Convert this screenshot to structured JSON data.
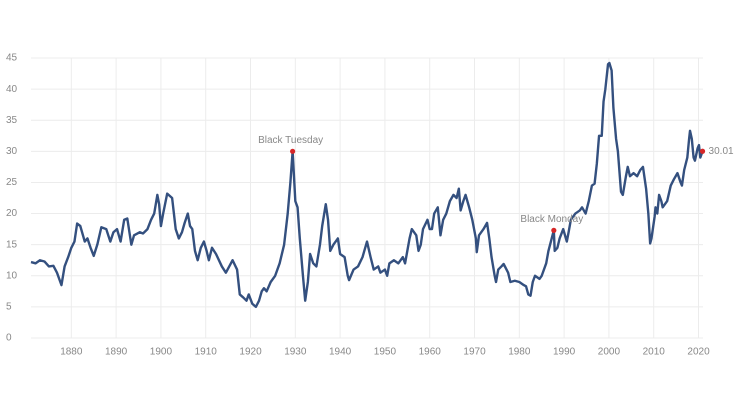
{
  "chart_data": {
    "type": "line",
    "color": "#34507f",
    "marker_color": "#d62728",
    "grid": true,
    "xlim": [
      1871,
      2021
    ],
    "ylim": [
      0,
      45
    ],
    "xticks": [
      1880,
      1890,
      1900,
      1910,
      1920,
      1930,
      1940,
      1950,
      1960,
      1970,
      1980,
      1990,
      2000,
      2010,
      2020
    ],
    "yticks": [
      0,
      5,
      10,
      15,
      20,
      25,
      30,
      35,
      40,
      45
    ],
    "x": [
      1871,
      1872,
      1873,
      1874,
      1875,
      1876,
      1876.8,
      1877.8,
      1878.5,
      1879.3,
      1880,
      1880.7,
      1881.3,
      1882,
      1883,
      1883.6,
      1884.3,
      1885,
      1885.8,
      1886.7,
      1887.8,
      1888.7,
      1889.4,
      1890.2,
      1891,
      1891.8,
      1892.5,
      1893.4,
      1894,
      1895.3,
      1896,
      1897,
      1897.8,
      1898.5,
      1899.2,
      1899.6,
      1900,
      1900.5,
      1901.4,
      1902.5,
      1903.3,
      1904,
      1904.7,
      1905.3,
      1906,
      1906.5,
      1907,
      1907.6,
      1908.2,
      1908.9,
      1909.6,
      1910.2,
      1910.7,
      1911.4,
      1912.3,
      1913.6,
      1914.5,
      1916,
      1917,
      1917.6,
      1918.4,
      1919.1,
      1919.6,
      1920.4,
      1921.2,
      1921.9,
      1922.5,
      1923,
      1923.6,
      1924.5,
      1925.5,
      1926.5,
      1927.5,
      1928.3,
      1928.9,
      1929.4,
      1930,
      1930.5,
      1931,
      1931.7,
      1932.2,
      1932.8,
      1933.3,
      1934,
      1934.7,
      1935.5,
      1936,
      1936.8,
      1937.3,
      1937.8,
      1938.5,
      1939.5,
      1940,
      1941,
      1941.7,
      1942,
      1943,
      1944,
      1945,
      1946,
      1946.8,
      1947.5,
      1948.5,
      1949,
      1950,
      1950.5,
      1951,
      1952,
      1953,
      1953.5,
      1954,
      1954.5,
      1955,
      1955.5,
      1956,
      1957,
      1957.5,
      1958,
      1958.5,
      1959.5,
      1960,
      1960.5,
      1961,
      1961.8,
      1962.4,
      1963,
      1963.7,
      1964.5,
      1965.3,
      1966,
      1966.5,
      1966.9,
      1967.5,
      1968,
      1968.8,
      1969.5,
      1970.3,
      1970.5,
      1971,
      1972,
      1972.8,
      1973.3,
      1973.8,
      1974.5,
      1974.8,
      1975.3,
      1976,
      1976.5,
      1977.5,
      1978,
      1979,
      1980,
      1981,
      1981.5,
      1982,
      1982.5,
      1983,
      1983.5,
      1984.5,
      1985,
      1986,
      1986.5,
      1987.7,
      1987.9,
      1988.5,
      1989,
      1989.8,
      1990.6,
      1991,
      1991.5,
      1992.5,
      1993.5,
      1994,
      1994.8,
      1995.5,
      1996.2,
      1996.8,
      1997.3,
      1997.8,
      1998.4,
      1998.8,
      1999.2,
      1999.8,
      2000.1,
      2000.6,
      2001,
      2001.6,
      2002,
      2002.7,
      2003.1,
      2003.8,
      2004.2,
      2004.7,
      2005.5,
      2006.3,
      2007,
      2007.6,
      2008.3,
      2008.8,
      2009.2,
      2009.5,
      2010.2,
      2010.4,
      2010.8,
      2011.2,
      2011.7,
      2012,
      2013,
      2013.8,
      2014.5,
      2015.3,
      2016,
      2016.3,
      2016.8,
      2017.5,
      2017.9,
      2018.1,
      2018.5,
      2018.9,
      2019.2,
      2019.8,
      2020.1,
      2020.4,
      2020.9
    ],
    "values": [
      12.2,
      12.0,
      12.5,
      12.3,
      11.5,
      11.6,
      10.5,
      8.5,
      11.5,
      13.0,
      14.5,
      15.5,
      18.4,
      18.0,
      15.5,
      16.0,
      14.5,
      13.2,
      15.0,
      17.8,
      17.5,
      15.5,
      17.0,
      17.5,
      15.5,
      19.0,
      19.2,
      15.0,
      16.5,
      17.0,
      16.8,
      17.5,
      19.0,
      20.0,
      23.0,
      21.5,
      18.0,
      20.0,
      23.2,
      22.5,
      17.5,
      16.0,
      17.0,
      18.5,
      20.0,
      18.0,
      17.5,
      14.0,
      12.5,
      14.5,
      15.5,
      14.0,
      12.5,
      14.5,
      13.5,
      11.5,
      10.5,
      12.5,
      11.0,
      7.0,
      6.5,
      6.0,
      7.0,
      5.5,
      5.0,
      6.0,
      7.5,
      8.0,
      7.5,
      9.0,
      10.0,
      12.0,
      15.0,
      20.0,
      25.0,
      30.0,
      22.0,
      21.0,
      16.0,
      10.0,
      6.0,
      9.0,
      13.5,
      12.0,
      11.5,
      15.0,
      18.0,
      21.5,
      19.0,
      14.0,
      15.0,
      16.0,
      13.5,
      13.0,
      10.0,
      9.3,
      11.0,
      11.5,
      13.0,
      15.5,
      13.0,
      11.0,
      11.5,
      10.5,
      11.0,
      10.0,
      12.0,
      12.5,
      12.0,
      12.5,
      13.0,
      12.0,
      14.0,
      16.0,
      17.5,
      16.5,
      14.0,
      15.0,
      17.5,
      19.0,
      17.5,
      17.5,
      20.0,
      21.0,
      16.5,
      19.0,
      20.0,
      22.0,
      23.0,
      22.5,
      24.0,
      20.5,
      22.0,
      23.0,
      21.0,
      19.0,
      16.0,
      13.8,
      16.5,
      17.5,
      18.5,
      16.0,
      13.0,
      10.0,
      9.0,
      11.0,
      11.5,
      11.9,
      10.5,
      9.0,
      9.2,
      9.0,
      8.5,
      8.3,
      7.0,
      6.8,
      9.0,
      10.0,
      9.5,
      10.0,
      12.0,
      14.0,
      17.3,
      14.0,
      14.5,
      16.0,
      17.5,
      15.5,
      17.0,
      19.0,
      20.0,
      20.5,
      21.0,
      20.0,
      22.0,
      24.5,
      24.8,
      28.0,
      32.5,
      32.5,
      38.0,
      40.0,
      44.0,
      44.2,
      43.0,
      37.0,
      32.0,
      30.0,
      23.5,
      23.0,
      26.0,
      27.5,
      26.0,
      26.5,
      26.0,
      27.0,
      27.5,
      24.0,
      20.0,
      15.2,
      16.0,
      19.5,
      21.0,
      20.0,
      23.0,
      22.0,
      21.0,
      22.0,
      24.5,
      25.5,
      26.5,
      25.0,
      24.5,
      27.0,
      29.0,
      32.0,
      33.3,
      32.0,
      29.0,
      28.5,
      30.5,
      31.0,
      29.0,
      30.01
    ],
    "annotations": [
      {
        "text": "Black Tuesday",
        "x": 1929.4,
        "y": 30.0
      },
      {
        "text": "Black Monday",
        "x": 1987.7,
        "y": 17.3
      },
      {
        "text": "30.01",
        "x": 2020.9,
        "y": 30.01
      }
    ]
  }
}
